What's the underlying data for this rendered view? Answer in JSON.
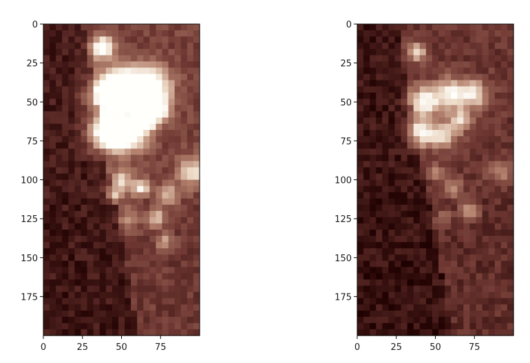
{
  "chart_data": [
    {
      "type": "heatmap",
      "colormap": "pink-dark",
      "title": "",
      "xlabel": "",
      "ylabel": "",
      "x_range": [
        0,
        100
      ],
      "y_range": [
        0,
        200
      ],
      "y_inverted": true,
      "grid": false,
      "x_ticks": [
        0,
        25,
        50,
        75
      ],
      "y_ticks": [
        0,
        25,
        50,
        75,
        100,
        125,
        150,
        175
      ],
      "brightness_scale": 1.0,
      "blobs": [
        {
          "x": 38,
          "y": 15,
          "s": 5,
          "v": 0.9
        },
        {
          "x": 42,
          "y": 45,
          "s": 9,
          "v": 1.0
        },
        {
          "x": 55,
          "y": 40,
          "s": 8,
          "v": 0.95
        },
        {
          "x": 70,
          "y": 40,
          "s": 8,
          "v": 0.9
        },
        {
          "x": 40,
          "y": 70,
          "s": 8,
          "v": 1.0
        },
        {
          "x": 55,
          "y": 70,
          "s": 8,
          "v": 0.9
        },
        {
          "x": 65,
          "y": 60,
          "s": 6,
          "v": 0.85
        },
        {
          "x": 75,
          "y": 55,
          "s": 5,
          "v": 0.7
        },
        {
          "x": 95,
          "y": 95,
          "s": 6,
          "v": 0.6
        },
        {
          "x": 80,
          "y": 110,
          "s": 5,
          "v": 0.45
        },
        {
          "x": 62,
          "y": 105,
          "s": 4,
          "v": 0.6
        },
        {
          "x": 50,
          "y": 100,
          "s": 5,
          "v": 0.5
        },
        {
          "x": 72,
          "y": 125,
          "s": 4,
          "v": 0.55
        },
        {
          "x": 55,
          "y": 125,
          "s": 5,
          "v": 0.35
        },
        {
          "x": 78,
          "y": 140,
          "s": 4,
          "v": 0.4
        },
        {
          "x": 45,
          "y": 110,
          "s": 4,
          "v": 0.4
        }
      ]
    },
    {
      "type": "heatmap",
      "colormap": "pink-dark",
      "title": "",
      "xlabel": "",
      "ylabel": "",
      "x_range": [
        0,
        100
      ],
      "y_range": [
        0,
        200
      ],
      "y_inverted": true,
      "grid": false,
      "x_ticks": [
        0,
        25,
        50,
        75
      ],
      "y_ticks": [
        0,
        25,
        50,
        75,
        100,
        125,
        150,
        175
      ],
      "brightness_scale": 0.8,
      "blobs": [
        {
          "x": 38,
          "y": 18,
          "s": 4,
          "v": 0.75
        },
        {
          "x": 43,
          "y": 50,
          "s": 7,
          "v": 0.9
        },
        {
          "x": 60,
          "y": 45,
          "s": 7,
          "v": 0.85
        },
        {
          "x": 75,
          "y": 45,
          "s": 6,
          "v": 0.8
        },
        {
          "x": 40,
          "y": 70,
          "s": 6,
          "v": 0.9
        },
        {
          "x": 55,
          "y": 72,
          "s": 6,
          "v": 0.7
        },
        {
          "x": 66,
          "y": 62,
          "s": 5,
          "v": 0.7
        },
        {
          "x": 92,
          "y": 95,
          "s": 5,
          "v": 0.45
        },
        {
          "x": 62,
          "y": 105,
          "s": 4,
          "v": 0.45
        },
        {
          "x": 72,
          "y": 120,
          "s": 4,
          "v": 0.55
        },
        {
          "x": 55,
          "y": 125,
          "s": 4,
          "v": 0.3
        },
        {
          "x": 50,
          "y": 95,
          "s": 4,
          "v": 0.35
        }
      ]
    }
  ]
}
